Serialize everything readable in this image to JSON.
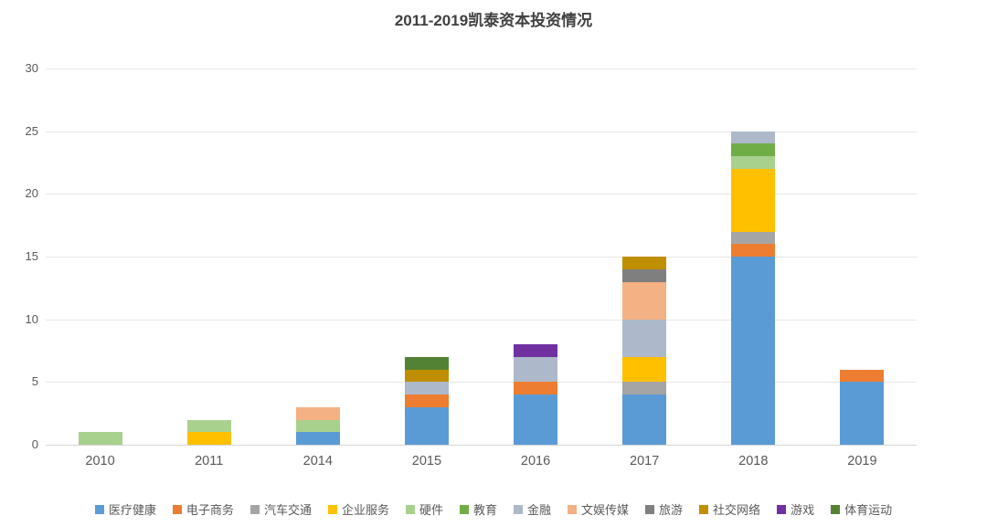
{
  "title": "2011-2019凯泰资本投资情况",
  "axis": {
    "yticks": [
      "0",
      "5",
      "10",
      "15",
      "20",
      "25",
      "30"
    ],
    "ymax": 30
  },
  "chart_data": {
    "type": "bar",
    "stacked": true,
    "title": "2011-2019凯泰资本投资情况",
    "categories": [
      "2010",
      "2011",
      "2014",
      "2015",
      "2016",
      "2017",
      "2018",
      "2019"
    ],
    "series": [
      {
        "name": "医疗健康",
        "color": "#5B9BD5",
        "values": [
          0,
          0,
          1,
          3,
          4,
          4,
          15,
          5
        ]
      },
      {
        "name": "电子商务",
        "color": "#ED7D31",
        "values": [
          0,
          0,
          0,
          1,
          1,
          0,
          1,
          1
        ]
      },
      {
        "name": "汽车交通",
        "color": "#A5A5A5",
        "values": [
          0,
          0,
          0,
          0,
          0,
          1,
          1,
          0
        ]
      },
      {
        "name": "企业服务",
        "color": "#FFC000",
        "values": [
          0,
          1,
          0,
          0,
          0,
          2,
          5,
          0
        ]
      },
      {
        "name": "硬件",
        "color": "#A9D18E",
        "values": [
          1,
          1,
          1,
          0,
          0,
          0,
          1,
          0
        ]
      },
      {
        "name": "教育",
        "color": "#70AD47",
        "values": [
          0,
          0,
          0,
          0,
          0,
          0,
          1,
          0
        ]
      },
      {
        "name": "金融",
        "color": "#ADB9CA",
        "values": [
          0,
          0,
          0,
          1,
          2,
          3,
          1,
          0
        ]
      },
      {
        "name": "文娱传媒",
        "color": "#F4B183",
        "values": [
          0,
          0,
          1,
          0,
          0,
          3,
          0,
          0
        ]
      },
      {
        "name": "旅游",
        "color": "#7F7F7F",
        "values": [
          0,
          0,
          0,
          0,
          0,
          1,
          0,
          0
        ]
      },
      {
        "name": "社交网络",
        "color": "#BF8F00",
        "values": [
          0,
          0,
          0,
          1,
          0,
          1,
          0,
          0
        ]
      },
      {
        "name": "游戏",
        "color": "#7030A0",
        "values": [
          0,
          0,
          0,
          0,
          1,
          0,
          0,
          0
        ]
      },
      {
        "name": "体育运动",
        "color": "#548235",
        "values": [
          0,
          0,
          0,
          1,
          0,
          0,
          0,
          0
        ]
      }
    ],
    "totals": {
      "2010": 1,
      "2011": 2,
      "2014": 3,
      "2015": 7,
      "2016": 8,
      "2017": 15,
      "2018": 25,
      "2019": 6
    },
    "ylim": [
      0,
      30
    ],
    "ytick_interval": 5,
    "grid": true,
    "legend_position": "bottom"
  }
}
